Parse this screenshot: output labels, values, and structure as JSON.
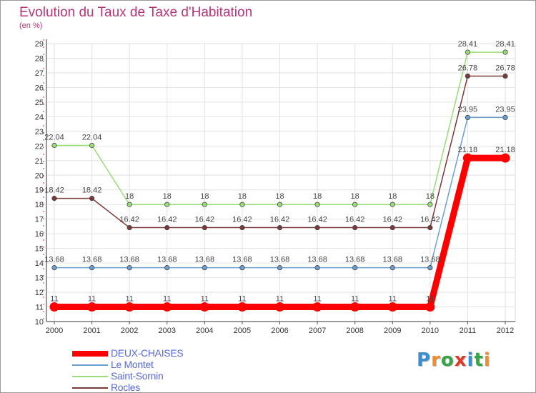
{
  "title": "Evolution du Taux de Taxe d'Habitation",
  "subtitle": "(en %)",
  "logo": {
    "text": "Proxiti",
    "colors": [
      "#3a8fd0",
      "#f08c2a",
      "#3aa34a",
      "#e03a2a",
      "#3a8fd0",
      "#3aa34a",
      "#f08c2a"
    ]
  },
  "chart_data": {
    "type": "line",
    "title": "Evolution du Taux de Taxe d'Habitation",
    "ylabel": "(en %)",
    "xlabel": "",
    "x": [
      "2000",
      "2001",
      "2002",
      "2003",
      "2004",
      "2005",
      "2006",
      "2007",
      "2008",
      "2009",
      "2010",
      "2011",
      "2012"
    ],
    "ylim": [
      10,
      29
    ],
    "yticks": [
      10,
      11,
      12,
      13,
      14,
      15,
      16,
      17,
      18,
      19,
      20,
      21,
      22,
      23,
      24,
      25,
      26,
      27,
      28,
      29
    ],
    "grid": true,
    "legend": "bottom-left",
    "series": [
      {
        "name": "DEUX-CHAISES",
        "color": "#ff0000",
        "values": [
          11,
          11,
          11,
          11,
          11,
          11,
          11,
          11,
          11,
          11,
          11,
          21.18,
          21.18
        ],
        "labels": [
          "11",
          "11",
          "11",
          "11",
          "11",
          "11",
          "11",
          "11",
          "11",
          "11",
          "11",
          "21.18",
          "21.18"
        ]
      },
      {
        "name": "Le Montet",
        "color": "#6a9fd0",
        "values": [
          13.68,
          13.68,
          13.68,
          13.68,
          13.68,
          13.68,
          13.68,
          13.68,
          13.68,
          13.68,
          13.68,
          23.95,
          23.95
        ],
        "labels": [
          "13.68",
          "13.68",
          "13.68",
          "13.68",
          "13.68",
          "13.68",
          "13.68",
          "13.68",
          "13.68",
          "13.68",
          "13.68",
          "23.95",
          "23.95"
        ]
      },
      {
        "name": "Saint-Sornin",
        "color": "#99dd77",
        "values": [
          22.04,
          22.04,
          18,
          18,
          18,
          18,
          18,
          18,
          18,
          18,
          18,
          28.41,
          28.41
        ],
        "labels": [
          "22.04",
          "22.04",
          "18",
          "18",
          "18",
          "18",
          "18",
          "18",
          "18",
          "18",
          "18",
          "28.41",
          "28.41"
        ]
      },
      {
        "name": "Rocles",
        "color": "#7a3a3a",
        "values": [
          18.42,
          18.42,
          16.42,
          16.42,
          16.42,
          16.42,
          16.42,
          16.42,
          16.42,
          16.42,
          16.42,
          26.78,
          26.78
        ],
        "labels": [
          "18.42",
          "18.42",
          "16.42",
          "16.42",
          "16.42",
          "16.42",
          "16.42",
          "16.42",
          "16.42",
          "16.42",
          "16.42",
          "26.78",
          "26.78"
        ]
      }
    ]
  }
}
